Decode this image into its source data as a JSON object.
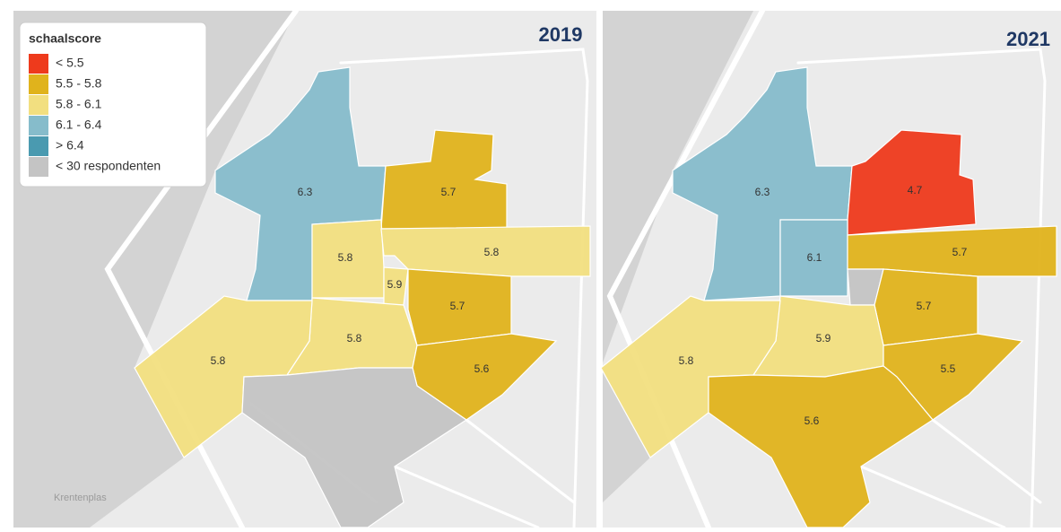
{
  "legend": {
    "title": "schaalscore",
    "items": [
      {
        "label": "< 5.5",
        "color": "#ee3a1c"
      },
      {
        "label": "5.5 - 5.8",
        "color": "#e0b31c"
      },
      {
        "label": "5.8 - 6.1",
        "color": "#f2df80"
      },
      {
        "label": "6.1 - 6.4",
        "color": "#86bccb"
      },
      {
        "label": "> 6.4",
        "color": "#4a9ab0"
      },
      {
        "label": "< 30 respondenten",
        "color": "#c4c4c4"
      }
    ]
  },
  "panels": [
    {
      "year": "2019",
      "regions": [
        {
          "value": 6.3,
          "color": "#86bccb"
        },
        {
          "value": 5.7,
          "color": "#e0b31c"
        },
        {
          "value": 5.8,
          "color": "#f2df80"
        },
        {
          "value": 5.8,
          "color": "#f2df80"
        },
        {
          "value": 5.9,
          "color": "#f2df80"
        },
        {
          "value": 5.7,
          "color": "#e0b31c"
        },
        {
          "value": 5.8,
          "color": "#f2df80"
        },
        {
          "value": 5.8,
          "color": "#f2df80"
        },
        {
          "value": 5.6,
          "color": "#e0b31c"
        },
        {
          "color": "#c4c4c4"
        }
      ]
    },
    {
      "year": "2021",
      "regions": [
        {
          "value": 6.3,
          "color": "#86bccb"
        },
        {
          "value": 4.7,
          "color": "#ee3a1c"
        },
        {
          "value": 6.1,
          "color": "#86bccb"
        },
        {
          "value": 5.7,
          "color": "#e0b31c"
        },
        {
          "color": "#c4c4c4"
        },
        {
          "value": 5.7,
          "color": "#e0b31c"
        },
        {
          "value": 5.9,
          "color": "#f2df80"
        },
        {
          "value": 5.8,
          "color": "#f2df80"
        },
        {
          "value": 5.5,
          "color": "#e0b31c"
        },
        {
          "value": 5.6,
          "color": "#e0b31c"
        }
      ]
    }
  ],
  "place_label": "Krentenplas"
}
